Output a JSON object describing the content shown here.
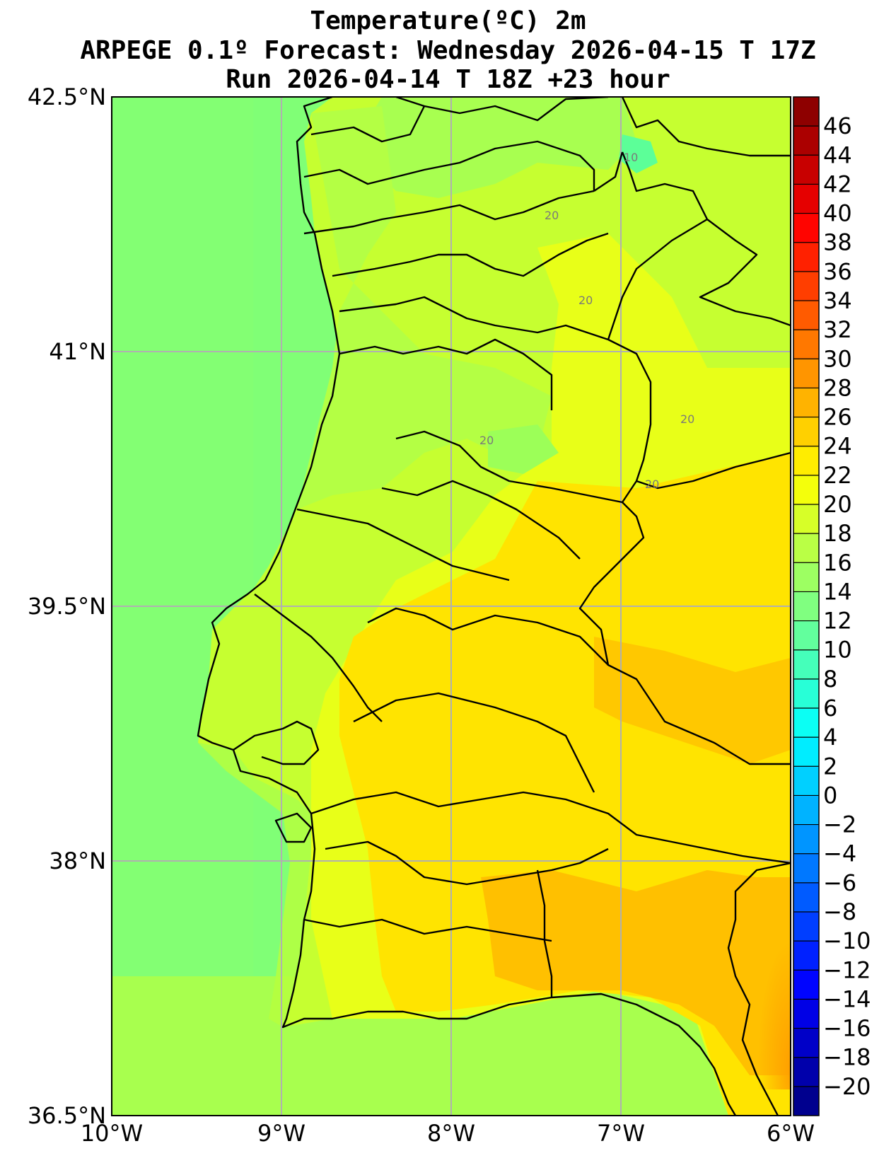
{
  "title": {
    "line1": "Temperature(ºC) 2m",
    "line2": "ARPEGE 0.1º Forecast: Wednesday 2026-04-15 T 17Z",
    "line3": "Run 2026-04-14 T 18Z +23 hour"
  },
  "map": {
    "lon_range": [
      -10,
      -6
    ],
    "lat_range": [
      36.5,
      42.5
    ],
    "lon_ticks": [
      {
        "value": -10,
        "label": "10°W"
      },
      {
        "value": -9,
        "label": "9°W"
      },
      {
        "value": -8,
        "label": "8°W"
      },
      {
        "value": -7,
        "label": "7°W"
      },
      {
        "value": -6,
        "label": "6°W"
      }
    ],
    "lat_ticks": [
      {
        "value": 36.5,
        "label": "36.5°N"
      },
      {
        "value": 38.0,
        "label": "38°N"
      },
      {
        "value": 39.5,
        "label": "39.5°N"
      },
      {
        "value": 41.0,
        "label": "41°N"
      },
      {
        "value": 42.5,
        "label": "42.5°N"
      }
    ],
    "grid": true,
    "contour_labels": [
      "10",
      "20",
      "20",
      "20",
      "20",
      "20"
    ],
    "colors": {
      "sea": "#7fff7a",
      "land_north": "#c2ff3a",
      "land_center": "#e6ff1a",
      "land_south_warm": "#ffd700",
      "land_south_hot": "#ffb300",
      "cool_patch": "#5bff8f",
      "grid": "#b0b0b0",
      "borders": "#000000"
    }
  },
  "colorbar": {
    "min": -22,
    "max": 48,
    "step": 2,
    "labels": [
      "46",
      "44",
      "42",
      "40",
      "38",
      "36",
      "34",
      "32",
      "30",
      "28",
      "26",
      "24",
      "22",
      "20",
      "18",
      "16",
      "14",
      "12",
      "10",
      "8",
      "6",
      "4",
      "2",
      "0",
      "−2",
      "−4",
      "−6",
      "−8",
      "−10",
      "−12",
      "−14",
      "−16",
      "−18",
      "−20"
    ],
    "label_values": [
      46,
      44,
      42,
      40,
      38,
      36,
      34,
      32,
      30,
      28,
      26,
      24,
      22,
      20,
      18,
      16,
      14,
      12,
      10,
      8,
      6,
      4,
      2,
      0,
      -2,
      -4,
      -6,
      -8,
      -10,
      -12,
      -14,
      -16,
      -18,
      -20
    ]
  }
}
